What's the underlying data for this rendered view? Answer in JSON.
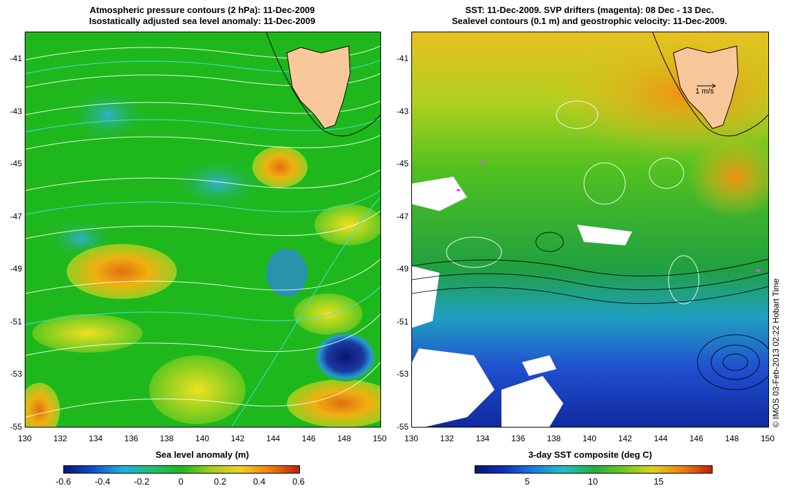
{
  "left_panel": {
    "title_line1": "Atmospheric pressure contours (2 hPa): 11-Dec-2009",
    "title_line2": "Isostatically adjusted sea level anomaly: 11-Dec-2009",
    "colorbar": {
      "label": "Sea level anomaly (m)",
      "ticks": [
        "-0.6",
        "-0.4",
        "-0.2",
        "0",
        "0.2",
        "0.4",
        "0.6"
      ]
    }
  },
  "right_panel": {
    "title_line1": "SST: 11-Dec-2009. SVP drifters (magenta): 08 Dec - 13 Dec.",
    "title_line2": "Sealevel contours (0.1 m) and geostrophic velocity: 11-Dec-2009.",
    "velocity_scale": "1 m/s",
    "colorbar": {
      "label": "3-day SST composite (deg C)",
      "ticks": [
        "5",
        "10",
        "15"
      ]
    }
  },
  "y_ticks": [
    "-41",
    "-43",
    "-45",
    "-47",
    "-49",
    "-51",
    "-53",
    "-55"
  ],
  "x_ticks": [
    "130",
    "132",
    "134",
    "136",
    "138",
    "140",
    "142",
    "144",
    "146",
    "148",
    "150"
  ],
  "credit": "© IMOS 03-Feb-2013 02:22 Hobart Time",
  "colors": {
    "land": "#f9c89a",
    "ssh_low": "#0a1570",
    "ssh_mid": "#1fb81c",
    "ssh_high": "#d84010",
    "sst_cold": "#1030c0",
    "sst_warm": "#f0a010",
    "contour_white": "#ffffff",
    "contour_cyan": "#40e0e0"
  }
}
